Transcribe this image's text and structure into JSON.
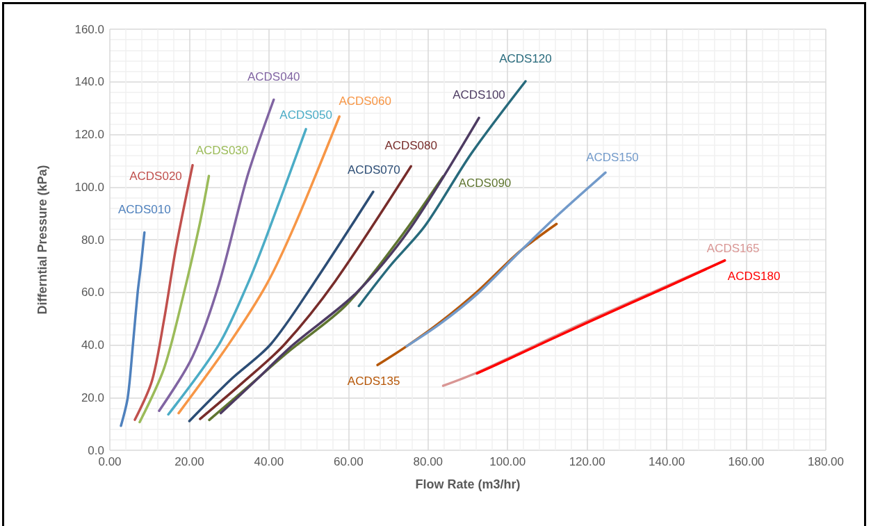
{
  "chart_data": {
    "type": "line",
    "xlabel": "Flow Rate (m3/hr)",
    "ylabel": "Differntial Pressure (kPa)",
    "xlim": [
      0,
      180
    ],
    "ylim": [
      0,
      160
    ],
    "xticks": [
      {
        "value": 0,
        "label": "0.00"
      },
      {
        "value": 20,
        "label": "20.00"
      },
      {
        "value": 40,
        "label": "40.00"
      },
      {
        "value": 60,
        "label": "60.00"
      },
      {
        "value": 80,
        "label": "80.00"
      },
      {
        "value": 100,
        "label": "100.00"
      },
      {
        "value": 120,
        "label": "120.00"
      },
      {
        "value": 140,
        "label": "140.00"
      },
      {
        "value": 160,
        "label": "160.00"
      },
      {
        "value": 180,
        "label": "180.00"
      }
    ],
    "yticks": [
      {
        "value": 0,
        "label": "0.0"
      },
      {
        "value": 20,
        "label": "20.0"
      },
      {
        "value": 40,
        "label": "40.0"
      },
      {
        "value": 60,
        "label": "60.0"
      },
      {
        "value": 80,
        "label": "80.0"
      },
      {
        "value": 100,
        "label": "100.0"
      },
      {
        "value": 120,
        "label": "120.0"
      },
      {
        "value": 140,
        "label": "140.0"
      },
      {
        "value": 160,
        "label": "160.0"
      }
    ],
    "grid": true,
    "legend": false,
    "marker": "none",
    "line_style": "solid",
    "series": [
      {
        "name": "ACDS010",
        "color": "#4f81bd",
        "x": [
          2.8,
          4.5,
          5.8,
          7.0,
          7.8,
          8.7
        ],
        "values": [
          9.3,
          20,
          40,
          60,
          70,
          82.8
        ]
      },
      {
        "name": "ACDS020",
        "color": "#c0504d",
        "x": [
          6.3,
          10.6,
          13.6,
          16.6,
          20.8
        ],
        "values": [
          11.6,
          26.4,
          49.3,
          76.7,
          108.3
        ]
      },
      {
        "name": "ACDS030",
        "color": "#9bbb59",
        "x": [
          7.5,
          13.6,
          18.4,
          22.6,
          24.9
        ],
        "values": [
          10.7,
          31,
          58.4,
          86,
          104.2
        ]
      },
      {
        "name": "ACDS040",
        "color": "#8064a2",
        "x": [
          12.4,
          20.8,
          27.4,
          34.6,
          41.2
        ],
        "values": [
          15,
          35.6,
          63,
          104.2,
          133.2
        ]
      },
      {
        "name": "ACDS050",
        "color": "#4bacc6",
        "x": [
          14.7,
          27.4,
          34.6,
          39.4,
          49.3
        ],
        "values": [
          13.6,
          40.1,
          63,
          81.3,
          122
        ]
      },
      {
        "name": "ACDS060",
        "color": "#f79646",
        "x": [
          17.3,
          29.8,
          39.4,
          46.6,
          57.7
        ],
        "values": [
          14.1,
          40.1,
          63,
          85.9,
          126.8
        ]
      },
      {
        "name": "ACDS070",
        "color": "#2c4d75",
        "x": [
          20,
          30.5,
          40.4,
          50.8,
          66.2
        ],
        "values": [
          11.1,
          27,
          40.2,
          62.4,
          98.2
        ]
      },
      {
        "name": "ACDS080",
        "color": "#772c2a",
        "x": [
          22.7,
          33.4,
          43.9,
          56.6,
          75.7
        ],
        "values": [
          11.9,
          25.7,
          40.2,
          64.1,
          107.9
        ]
      },
      {
        "name": "ACDS090",
        "color": "#5f7530",
        "x": [
          25,
          35,
          45,
          59.5,
          73.5,
          83.8
        ],
        "values": [
          11.5,
          24.5,
          37.6,
          55.3,
          81.8,
          104.1
        ]
      },
      {
        "name": "ACDS100",
        "color": "#4d3b62",
        "x": [
          27.9,
          37,
          46,
          61.9,
          75.2,
          92.8
        ],
        "values": [
          14.1,
          27,
          40,
          59.7,
          83.6,
          126.3
        ]
      },
      {
        "name": "ACDS120",
        "color": "#276a7c",
        "x": [
          62.6,
          70.6,
          79.3,
          90.9,
          104.5
        ],
        "values": [
          54.8,
          70.3,
          85.4,
          112.8,
          140.2
        ]
      },
      {
        "name": "ACDS135",
        "color": "#b65708",
        "x": [
          67.3,
          74.6,
          83,
          92.6,
          103.1,
          112.3
        ],
        "values": [
          32.4,
          39.5,
          48.6,
          60.6,
          75.6,
          86
        ]
      },
      {
        "name": "ACDS150",
        "color": "#729aca",
        "x": [
          74.6,
          83,
          92.6,
          103.1,
          112.3,
          124.6
        ],
        "values": [
          39.5,
          48,
          59.7,
          75.5,
          88.9,
          105.5
        ]
      },
      {
        "name": "ACDS165",
        "color": "#d99694",
        "x": [
          83.8,
          92.3,
          120,
          154.6
        ],
        "values": [
          24.5,
          29.5,
          49,
          72.1
        ]
      },
      {
        "name": "ACDS180",
        "color": "#ff0000",
        "x": [
          92.3,
          100,
          120,
          140,
          154.6
        ],
        "values": [
          29.2,
          34.5,
          48.5,
          62,
          72.1
        ]
      }
    ]
  }
}
